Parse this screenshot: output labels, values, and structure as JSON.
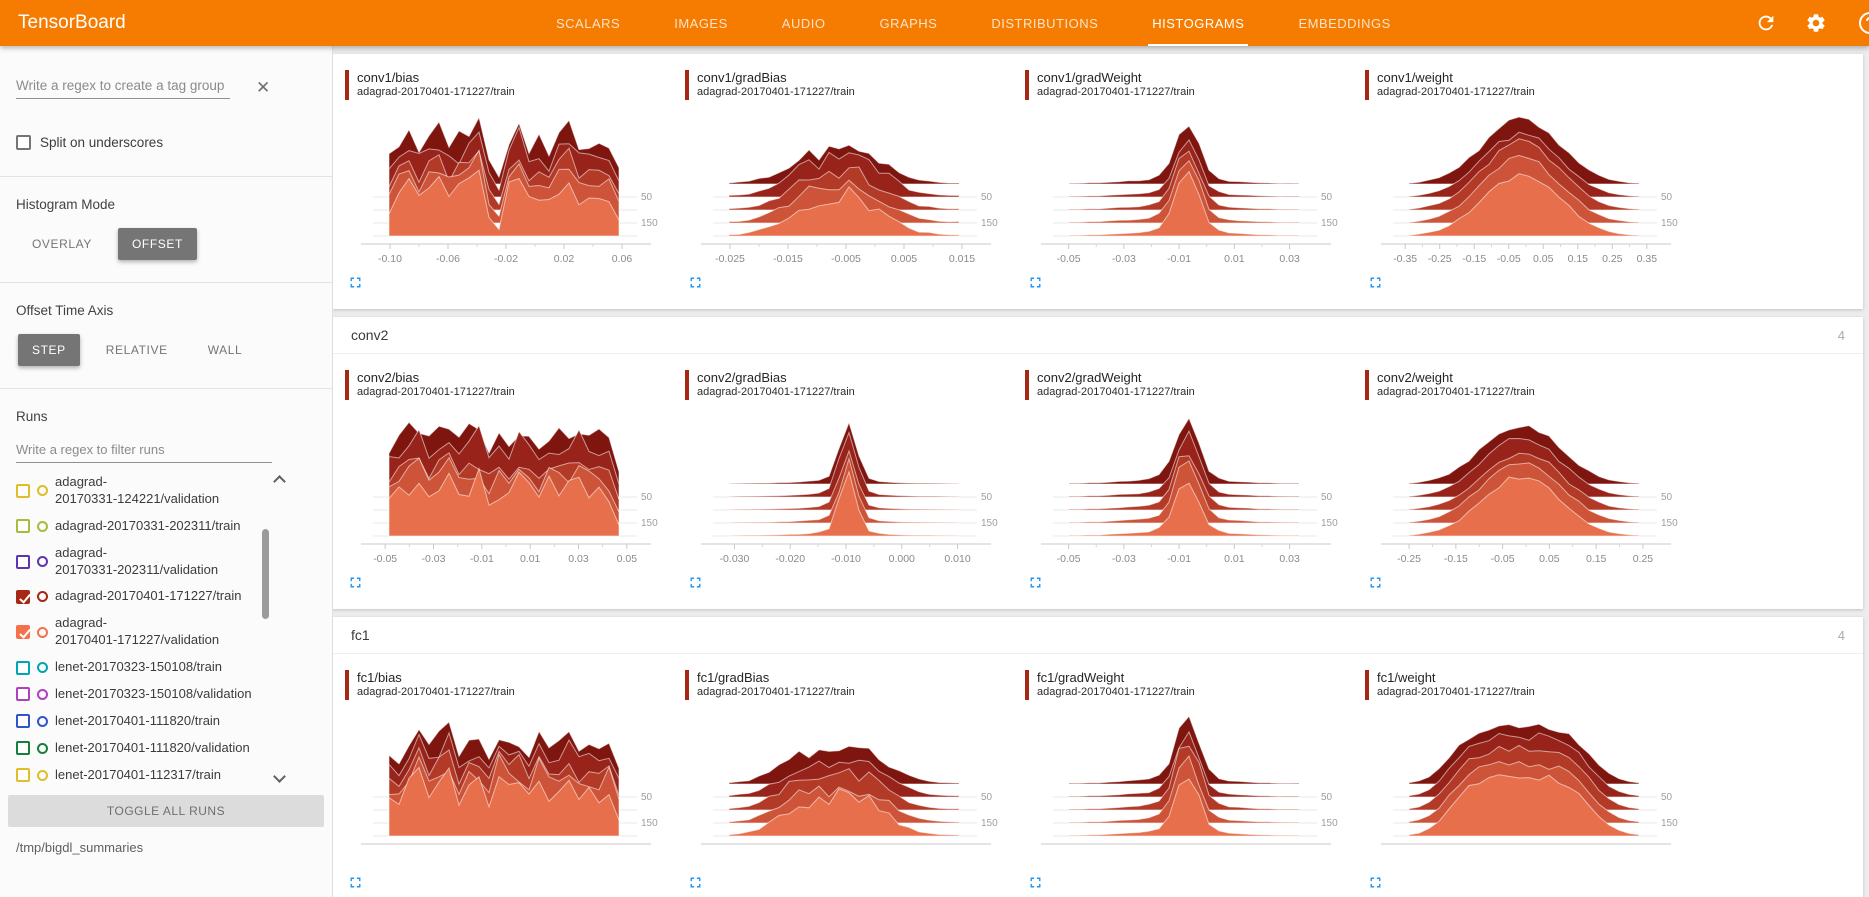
{
  "header": {
    "title": "TensorBoard",
    "tabs": [
      {
        "label": "SCALARS",
        "active": false
      },
      {
        "label": "IMAGES",
        "active": false
      },
      {
        "label": "AUDIO",
        "active": false
      },
      {
        "label": "GRAPHS",
        "active": false
      },
      {
        "label": "DISTRIBUTIONS",
        "active": false
      },
      {
        "label": "HISTOGRAMS",
        "active": true
      },
      {
        "label": "EMBEDDINGS",
        "active": false
      }
    ],
    "icons": [
      "refresh",
      "settings",
      "help"
    ]
  },
  "sidebar": {
    "tag_filter_placeholder": "Write a regex to create a tag group",
    "split_checkbox_label": "Split on underscores",
    "split_checked": false,
    "histogram_mode": {
      "label": "Histogram Mode",
      "options": [
        "OVERLAY",
        "OFFSET"
      ],
      "selected": "OFFSET"
    },
    "offset_time_axis": {
      "label": "Offset Time Axis",
      "options": [
        "STEP",
        "RELATIVE",
        "WALL"
      ],
      "selected": "STEP"
    },
    "runs_label": "Runs",
    "runs_filter_placeholder": "Write a regex to filter runs",
    "runs": [
      {
        "lines": [
          "adagrad-",
          "20170331-124221/validation"
        ],
        "color": "#E0BE2B",
        "checked": false
      },
      {
        "lines": [
          "adagrad-20170331-202311/train"
        ],
        "color": "#A9BB3B",
        "checked": false
      },
      {
        "lines": [
          "adagrad-",
          "20170331-202311/validation"
        ],
        "color": "#5E35B1",
        "checked": false
      },
      {
        "lines": [
          "adagrad-20170401-171227/train"
        ],
        "color": "#A52714",
        "checked": true
      },
      {
        "lines": [
          "adagrad-",
          "20170401-171227/validation"
        ],
        "color": "#F4714C",
        "checked": true
      },
      {
        "lines": [
          "lenet-20170323-150108/train"
        ],
        "color": "#00A5B3",
        "checked": false
      },
      {
        "lines": [
          "lenet-20170323-150108/validation"
        ],
        "color": "#B03FC1",
        "checked": false
      },
      {
        "lines": [
          "lenet-20170401-111820/train"
        ],
        "color": "#3153CE",
        "checked": false
      },
      {
        "lines": [
          "lenet-20170401-111820/validation"
        ],
        "color": "#157F3D",
        "checked": false
      },
      {
        "lines": [
          "lenet-20170401-112317/train"
        ],
        "color": "#E0BE2B",
        "checked": false
      }
    ],
    "toggle_all_label": "TOGGLE ALL RUNS",
    "logdir": "/tmp/bigdl_summaries"
  },
  "main": {
    "groups": [
      {
        "name": "conv1",
        "count": "",
        "header_visible": false
      },
      {
        "name": "conv2",
        "count": "4",
        "header_visible": true
      },
      {
        "name": "fc1",
        "count": "4",
        "header_visible": true
      }
    ]
  },
  "colors": {
    "header_bg": "#F57C00",
    "accent_red": "#A52714",
    "expand_blue": "#2196F3",
    "ridge_palette": [
      "#7E150F",
      "#98231A",
      "#B23A26",
      "#CD5438",
      "#E76F4B"
    ]
  },
  "chart_data": [
    {
      "group": "conv1",
      "tag": "conv1/bias",
      "run": "adagrad-20170401-171227/train",
      "type": "ridgeline-histogram",
      "x_ticks": [
        "-0.10",
        "-0.06",
        "-0.02",
        "0.02",
        "0.06"
      ],
      "x_domain": [
        -0.12,
        0.08
      ],
      "step_labels": [
        "50",
        "150"
      ],
      "jitter": 0.22,
      "envelope": [
        0.42,
        0.66,
        0.8,
        0.6,
        0.72,
        0.88,
        0.58,
        0.7,
        0.84,
        0.92,
        0.34,
        0.1,
        0.78,
        0.96,
        0.52,
        0.66,
        0.48,
        0.72,
        0.9,
        0.6,
        0.7,
        0.56,
        0.64,
        0.28
      ]
    },
    {
      "group": "conv1",
      "tag": "conv1/gradBias",
      "run": "adagrad-20170401-171227/train",
      "type": "ridgeline-histogram",
      "x_ticks": [
        "-0.025",
        "-0.015",
        "-0.005",
        "0.005",
        "0.015"
      ],
      "x_domain": [
        -0.03,
        0.02
      ],
      "step_labels": [
        "50",
        "150"
      ],
      "jitter": 0.18,
      "envelope": [
        0.02,
        0.03,
        0.05,
        0.09,
        0.14,
        0.22,
        0.32,
        0.45,
        0.52,
        0.48,
        0.62,
        0.58,
        0.7,
        0.62,
        0.5,
        0.4,
        0.3,
        0.2,
        0.12,
        0.07,
        0.05,
        0.03,
        0.02,
        0.02
      ]
    },
    {
      "group": "conv1",
      "tag": "conv1/gradWeight",
      "run": "adagrad-20170401-171227/train",
      "type": "ridgeline-histogram",
      "x_ticks": [
        "-0.05",
        "-0.03",
        "-0.01",
        "0.01",
        "0.03"
      ],
      "x_domain": [
        -0.06,
        0.045
      ],
      "step_labels": [
        "50",
        "150"
      ],
      "jitter": 0.1,
      "envelope": [
        0.01,
        0.01,
        0.02,
        0.02,
        0.03,
        0.04,
        0.05,
        0.06,
        0.08,
        0.14,
        0.35,
        0.85,
        1.0,
        0.65,
        0.22,
        0.09,
        0.05,
        0.04,
        0.03,
        0.02,
        0.02,
        0.01,
        0.01,
        0.01
      ]
    },
    {
      "group": "conv1",
      "tag": "conv1/weight",
      "run": "adagrad-20170401-171227/train",
      "type": "ridgeline-histogram",
      "x_ticks": [
        "-0.35",
        "-0.25",
        "-0.15",
        "-0.05",
        "0.05",
        "0.15",
        "0.25",
        "0.35"
      ],
      "x_domain": [
        -0.42,
        0.42
      ],
      "step_labels": [
        "50",
        "150"
      ],
      "jitter": 0.06,
      "envelope": [
        0.01,
        0.03,
        0.06,
        0.1,
        0.17,
        0.27,
        0.4,
        0.55,
        0.7,
        0.84,
        0.94,
        1.0,
        0.98,
        0.9,
        0.78,
        0.63,
        0.47,
        0.33,
        0.21,
        0.13,
        0.07,
        0.04,
        0.02,
        0.01
      ]
    },
    {
      "group": "conv2",
      "tag": "conv2/bias",
      "run": "adagrad-20170401-171227/train",
      "type": "ridgeline-histogram",
      "x_ticks": [
        "-0.05",
        "-0.03",
        "-0.01",
        "0.01",
        "0.03",
        "0.05"
      ],
      "x_domain": [
        -0.06,
        0.06
      ],
      "step_labels": [
        "50",
        "150"
      ],
      "jitter": 0.22,
      "envelope": [
        0.5,
        0.68,
        0.78,
        0.86,
        0.6,
        0.74,
        0.88,
        0.66,
        0.8,
        0.9,
        0.55,
        0.7,
        0.62,
        0.84,
        0.72,
        0.6,
        0.78,
        0.68,
        0.74,
        0.82,
        0.7,
        0.76,
        0.64,
        0.18
      ]
    },
    {
      "group": "conv2",
      "tag": "conv2/gradBias",
      "run": "adagrad-20170401-171227/train",
      "type": "ridgeline-histogram",
      "x_ticks": [
        "-0.030",
        "-0.020",
        "-0.010",
        "0.000",
        "0.010"
      ],
      "x_domain": [
        -0.036,
        0.016
      ],
      "step_labels": [
        "50",
        "150"
      ],
      "jitter": 0.1,
      "envelope": [
        0.005,
        0.008,
        0.01,
        0.012,
        0.015,
        0.02,
        0.025,
        0.03,
        0.04,
        0.06,
        0.12,
        0.55,
        1.0,
        0.4,
        0.08,
        0.04,
        0.025,
        0.02,
        0.015,
        0.012,
        0.01,
        0.008,
        0.006,
        0.005
      ]
    },
    {
      "group": "conv2",
      "tag": "conv2/gradWeight",
      "run": "adagrad-20170401-171227/train",
      "type": "ridgeline-histogram",
      "x_ticks": [
        "-0.05",
        "-0.03",
        "-0.01",
        "0.01",
        "0.03"
      ],
      "x_domain": [
        -0.06,
        0.045
      ],
      "step_labels": [
        "50",
        "150"
      ],
      "jitter": 0.1,
      "envelope": [
        0.01,
        0.01,
        0.02,
        0.02,
        0.03,
        0.04,
        0.05,
        0.06,
        0.08,
        0.14,
        0.35,
        0.85,
        1.0,
        0.65,
        0.22,
        0.09,
        0.05,
        0.04,
        0.03,
        0.02,
        0.02,
        0.01,
        0.01,
        0.01
      ]
    },
    {
      "group": "conv2",
      "tag": "conv2/weight",
      "run": "adagrad-20170401-171227/train",
      "type": "ridgeline-histogram",
      "x_ticks": [
        "-0.25",
        "-0.15",
        "-0.05",
        "0.05",
        "0.15",
        "0.25"
      ],
      "x_domain": [
        -0.31,
        0.31
      ],
      "step_labels": [
        "50",
        "150"
      ],
      "jitter": 0.06,
      "envelope": [
        0.01,
        0.03,
        0.06,
        0.1,
        0.17,
        0.27,
        0.4,
        0.55,
        0.7,
        0.84,
        0.94,
        1.0,
        0.98,
        0.9,
        0.78,
        0.63,
        0.47,
        0.33,
        0.21,
        0.13,
        0.07,
        0.04,
        0.02,
        0.01
      ]
    },
    {
      "group": "fc1",
      "tag": "fc1/bias",
      "run": "adagrad-20170401-171227/train",
      "type": "ridgeline-histogram",
      "x_ticks": [],
      "x_domain": [
        -1,
        1
      ],
      "step_labels": [
        "50",
        "150"
      ],
      "jitter": 0.22,
      "envelope": [
        0.55,
        0.4,
        0.72,
        0.88,
        0.58,
        0.76,
        0.92,
        0.5,
        0.68,
        0.84,
        0.44,
        0.9,
        0.66,
        0.78,
        0.52,
        0.86,
        0.6,
        0.74,
        0.88,
        0.56,
        0.7,
        0.62,
        0.74,
        0.3
      ]
    },
    {
      "group": "fc1",
      "tag": "fc1/gradBias",
      "run": "adagrad-20170401-171227/train",
      "type": "ridgeline-histogram",
      "x_ticks": [],
      "x_domain": [
        -1,
        1
      ],
      "step_labels": [
        "50",
        "150"
      ],
      "jitter": 0.18,
      "envelope": [
        0.02,
        0.04,
        0.07,
        0.12,
        0.2,
        0.3,
        0.42,
        0.52,
        0.46,
        0.6,
        0.55,
        0.68,
        0.62,
        0.54,
        0.58,
        0.44,
        0.34,
        0.22,
        0.14,
        0.08,
        0.05,
        0.03,
        0.02,
        0.02
      ]
    },
    {
      "group": "fc1",
      "tag": "fc1/gradWeight",
      "run": "adagrad-20170401-171227/train",
      "type": "ridgeline-histogram",
      "x_ticks": [],
      "x_domain": [
        -1,
        1
      ],
      "step_labels": [
        "50",
        "150"
      ],
      "jitter": 0.1,
      "envelope": [
        0.01,
        0.01,
        0.02,
        0.02,
        0.03,
        0.04,
        0.05,
        0.06,
        0.08,
        0.14,
        0.35,
        0.85,
        1.0,
        0.65,
        0.22,
        0.09,
        0.05,
        0.04,
        0.03,
        0.02,
        0.02,
        0.01,
        0.01,
        0.01
      ]
    },
    {
      "group": "fc1",
      "tag": "fc1/weight",
      "run": "adagrad-20170401-171227/train",
      "type": "ridgeline-histogram",
      "x_ticks": [],
      "x_domain": [
        -1,
        1
      ],
      "step_labels": [
        "50",
        "150"
      ],
      "jitter": 0.06,
      "envelope": [
        0.02,
        0.05,
        0.12,
        0.25,
        0.45,
        0.63,
        0.78,
        0.88,
        0.94,
        0.97,
        1.0,
        0.98,
        0.96,
        0.97,
        0.94,
        0.9,
        0.82,
        0.68,
        0.5,
        0.32,
        0.18,
        0.09,
        0.04,
        0.02
      ]
    }
  ]
}
